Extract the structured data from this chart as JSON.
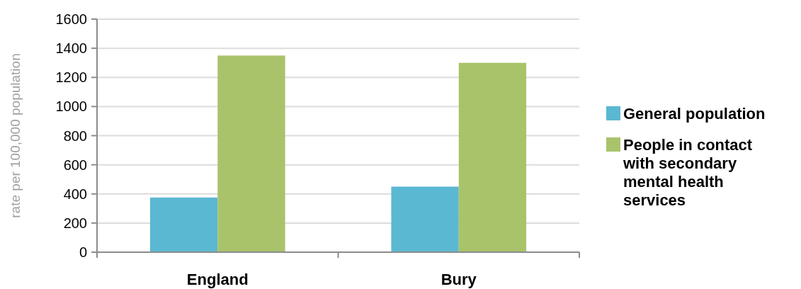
{
  "chart_data": {
    "type": "bar",
    "ylabel": "rate per 100,000 population",
    "categories": [
      "England",
      "Bury"
    ],
    "series": [
      {
        "name": "General population",
        "color": "#5bb8d3",
        "values": [
          375,
          450
        ]
      },
      {
        "name": "People in contact with secondary mental health services",
        "color": "#a9c36b",
        "values": [
          1350,
          1300
        ]
      }
    ],
    "ylim": [
      0,
      1600
    ],
    "yticks": [
      0,
      200,
      400,
      600,
      800,
      1000,
      1200,
      1400,
      1600
    ],
    "grid": "y",
    "legend": "right"
  }
}
